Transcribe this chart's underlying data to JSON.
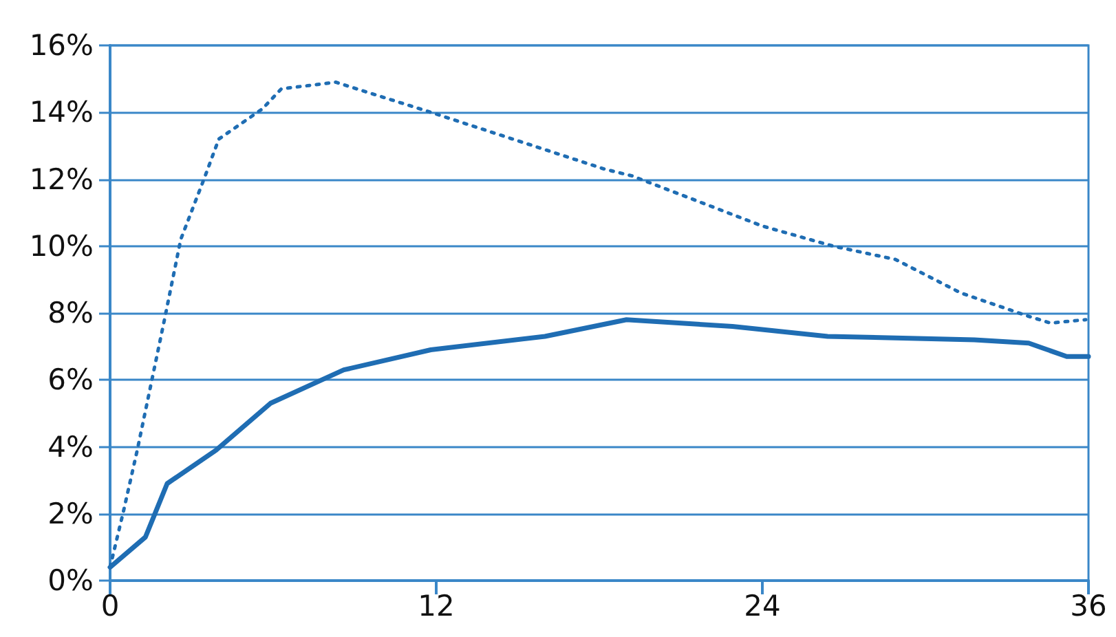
{
  "chart_data": {
    "type": "line",
    "xlim": [
      0,
      36
    ],
    "xticks": [
      0,
      12,
      24,
      36
    ],
    "ylim": [
      0,
      16
    ],
    "yticks": [
      {
        "value": 0,
        "label": "0%"
      },
      {
        "value": 2,
        "label": "2%"
      },
      {
        "value": 4,
        "label": "4%"
      },
      {
        "value": 6,
        "label": "6%"
      },
      {
        "value": 8,
        "label": "8%"
      },
      {
        "value": 10,
        "label": "10%"
      },
      {
        "value": 12,
        "label": "12%"
      },
      {
        "value": 14,
        "label": "14%"
      },
      {
        "value": 16,
        "label": "16%"
      }
    ],
    "grid": "y",
    "marker": "none",
    "series": [
      {
        "color": "#1f6db3",
        "line_style": "dotted",
        "x": [
          0,
          0.5,
          1,
          2,
          2.6,
          3.5,
          4,
          5.6,
          6.3,
          8.3,
          11.8,
          18.2,
          19.2,
          24,
          26.6,
          28.9,
          31.3,
          33.8,
          34.6,
          35.9
        ],
        "values": [
          0.4,
          2.1,
          3.9,
          7.8,
          10.2,
          12.1,
          13.2,
          14.1,
          14.7,
          14.9,
          14.0,
          12.3,
          12.1,
          10.6,
          10.0,
          9.6,
          8.6,
          7.9,
          7.7,
          7.8
        ]
      },
      {
        "color": "#1f6db3",
        "line_style": "solid",
        "x": [
          0,
          1.3,
          2.1,
          3.9,
          5.9,
          8.6,
          11.8,
          16,
          19,
          22.9,
          26.4,
          31.8,
          33.8,
          35.2,
          36
        ],
        "values": [
          0.4,
          1.3,
          2.9,
          3.9,
          5.3,
          6.3,
          6.9,
          7.3,
          7.8,
          7.6,
          7.3,
          7.2,
          7.1,
          6.7,
          6.7
        ]
      }
    ]
  }
}
